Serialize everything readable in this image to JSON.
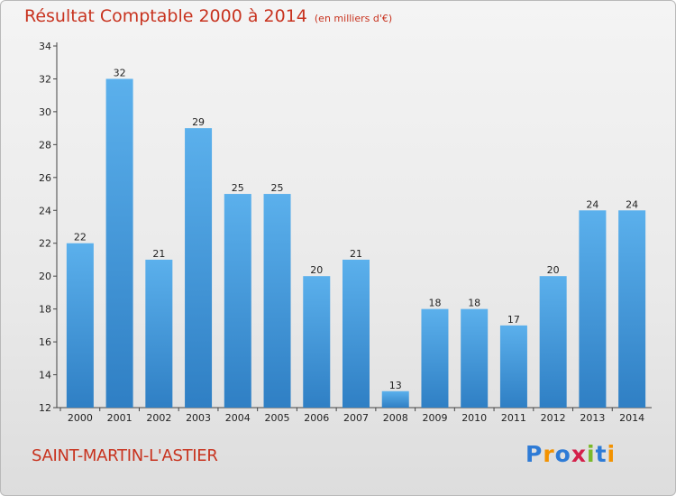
{
  "title": "Résultat Comptable 2000 à 2014",
  "subtitle": "(en milliers d'€)",
  "commune": "SAINT-MARTIN-L'ASTIER",
  "logo": {
    "letters": [
      "P",
      "r",
      "o",
      "x",
      "i",
      "t",
      "i"
    ],
    "colors": [
      "#2e7bd6",
      "#f39200",
      "#2e7bd6",
      "#d4204a",
      "#7ab929",
      "#2e7bd6",
      "#f39200"
    ]
  },
  "colors": {
    "bar": "#4a9fe0",
    "bar_dark": "#2f7fc4",
    "title": "#c8331f"
  },
  "chart_data": {
    "type": "bar",
    "categories": [
      "2000",
      "2001",
      "2002",
      "2003",
      "2004",
      "2005",
      "2006",
      "2007",
      "2008",
      "2009",
      "2010",
      "2011",
      "2012",
      "2013",
      "2014"
    ],
    "values": [
      22,
      32,
      21,
      29,
      25,
      25,
      20,
      21,
      13,
      18,
      18,
      17,
      20,
      24,
      24
    ],
    "title": "Résultat Comptable 2000 à 2014",
    "ylim": [
      12,
      34
    ],
    "yticks": [
      12,
      14,
      16,
      18,
      20,
      22,
      24,
      26,
      28,
      30,
      32,
      34
    ],
    "grid": false,
    "legend": false
  }
}
